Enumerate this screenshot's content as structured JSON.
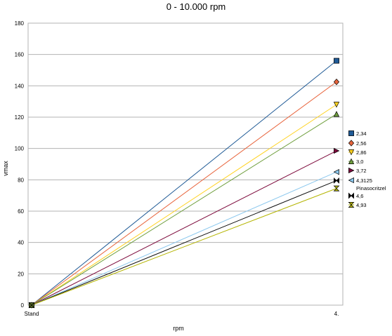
{
  "chart_data": {
    "type": "line",
    "title": "0 - 10.000 rpm",
    "xlabel": "rpm",
    "ylabel": "vmax",
    "categories": [
      "Stand",
      "4."
    ],
    "ylim": [
      0,
      180
    ],
    "yticks": [
      0,
      20,
      40,
      60,
      80,
      100,
      120,
      140,
      160,
      180
    ],
    "grid": true,
    "legend": "right",
    "series": [
      {
        "name": "2,34",
        "values": [
          0,
          156
        ],
        "color": "#1f5a96",
        "marker": "square"
      },
      {
        "name": "2,56",
        "values": [
          0,
          142.5
        ],
        "color": "#e8643c",
        "marker": "diamond"
      },
      {
        "name": "2,86",
        "values": [
          0,
          128
        ],
        "color": "#ffd21e",
        "marker": "triangle-down"
      },
      {
        "name": "3,0",
        "values": [
          0,
          122
        ],
        "color": "#6e9e3c",
        "marker": "triangle-up"
      },
      {
        "name": "3,72",
        "values": [
          0,
          98.5
        ],
        "color": "#7d0a3c",
        "marker": "triangle-right"
      },
      {
        "name": "4,3125 Pinasocritzel",
        "values": [
          0,
          85
        ],
        "color": "#8cc8ee",
        "marker": "triangle-left"
      },
      {
        "name": "4,6",
        "values": [
          0,
          79.5
        ],
        "color": "#0a0a0a",
        "marker": "bowtie"
      },
      {
        "name": "4,93",
        "values": [
          0,
          74.5
        ],
        "color": "#b4b400",
        "marker": "hourglass"
      }
    ]
  }
}
